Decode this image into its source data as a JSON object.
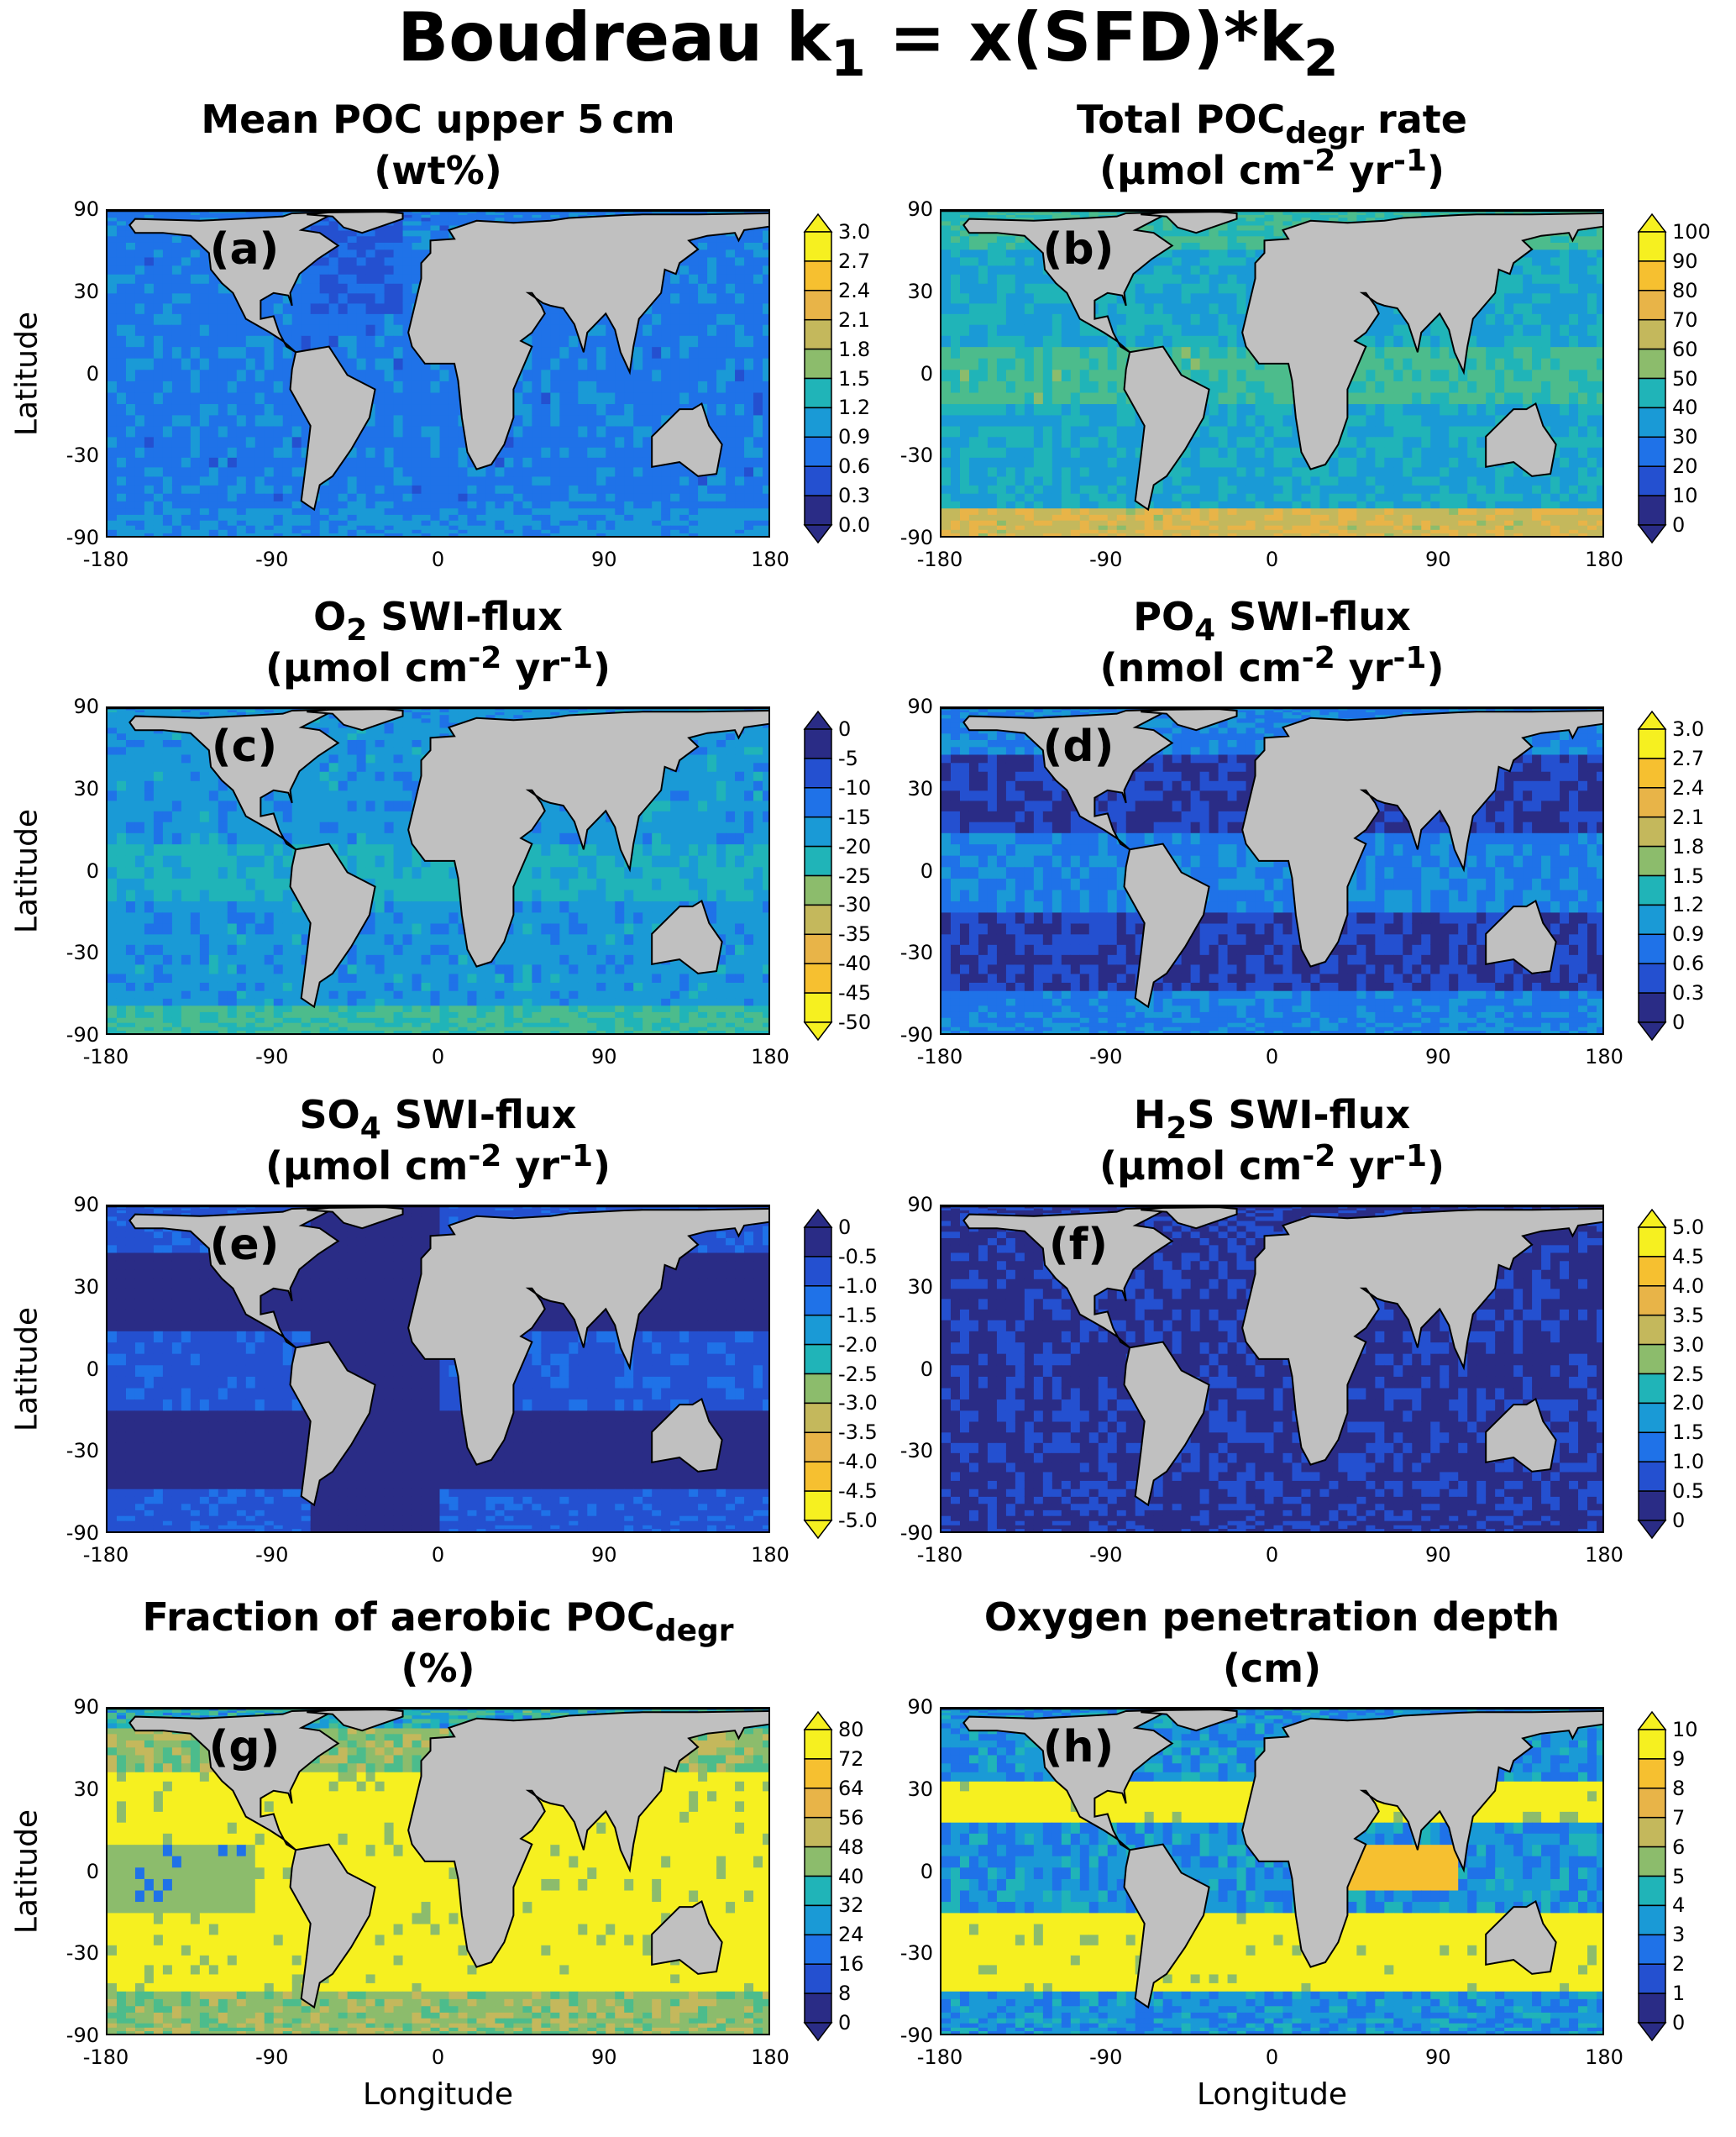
{
  "figure_title": {
    "pre": "Boudreau k",
    "sub1": "1",
    "mid": " = x(SFD)*k",
    "sub2": "2"
  },
  "axes": {
    "ylabel": "Latitude",
    "xlabel": "Longitude",
    "xticks": [
      "-180",
      "-90",
      "0",
      "90",
      "180"
    ],
    "yticks": [
      "90",
      "30",
      "0",
      "-30",
      "-90"
    ]
  },
  "colormap": [
    "#2a2c86",
    "#2450d0",
    "#1f72e8",
    "#1a9ad6",
    "#20b4b8",
    "#4cbc8c",
    "#8cbc6c",
    "#c4b85c",
    "#e8b448",
    "#f6c030",
    "#f6f020"
  ],
  "land_color": "#c0c0c0",
  "chart_data": [
    {
      "type": "heatmap",
      "letter": "(a)",
      "title": [
        [
          {
            "t": "Mean POC upper 5 cm"
          }
        ],
        [
          {
            "t": "(wt%)"
          }
        ]
      ],
      "colorbar": [
        "3.0",
        "2.7",
        "2.4",
        "2.1",
        "1.8",
        "1.5",
        "1.2",
        "0.9",
        "0.6",
        "0.3",
        "0.0"
      ],
      "range": [
        0,
        3.0
      ],
      "reversed": false
    },
    {
      "type": "heatmap",
      "letter": "(b)",
      "title": [
        [
          {
            "t": "Total POC"
          },
          {
            "t": "degr",
            "s": "sub"
          },
          {
            "t": " rate"
          }
        ],
        [
          {
            "t": "(µmol cm"
          },
          {
            "t": "-2",
            "s": "sup"
          },
          {
            "t": " yr"
          },
          {
            "t": "-1",
            "s": "sup"
          },
          {
            "t": ")"
          }
        ]
      ],
      "colorbar": [
        "100",
        "90",
        "80",
        "70",
        "60",
        "50",
        "40",
        "30",
        "20",
        "10",
        "0"
      ],
      "range": [
        0,
        100
      ],
      "reversed": false
    },
    {
      "type": "heatmap",
      "letter": "(c)",
      "title": [
        [
          {
            "t": "O"
          },
          {
            "t": "2",
            "s": "sub"
          },
          {
            "t": " SWI-flux"
          }
        ],
        [
          {
            "t": "(µmol cm"
          },
          {
            "t": "-2",
            "s": "sup"
          },
          {
            "t": " yr"
          },
          {
            "t": "-1",
            "s": "sup"
          },
          {
            "t": ")"
          }
        ]
      ],
      "colorbar": [
        "0",
        "-5",
        "-10",
        "-15",
        "-20",
        "-25",
        "-30",
        "-35",
        "-40",
        "-45",
        "-50"
      ],
      "range": [
        -50,
        0
      ],
      "reversed": true
    },
    {
      "type": "heatmap",
      "letter": "(d)",
      "title": [
        [
          {
            "t": "PO"
          },
          {
            "t": "4",
            "s": "sub"
          },
          {
            "t": " SWI-flux"
          }
        ],
        [
          {
            "t": "(nmol cm"
          },
          {
            "t": "-2",
            "s": "sup"
          },
          {
            "t": " yr"
          },
          {
            "t": "-1",
            "s": "sup"
          },
          {
            "t": ")"
          }
        ]
      ],
      "colorbar": [
        "3.0",
        "2.7",
        "2.4",
        "2.1",
        "1.8",
        "1.5",
        "1.2",
        "0.9",
        "0.6",
        "0.3",
        "0"
      ],
      "range": [
        0,
        3.0
      ],
      "reversed": false
    },
    {
      "type": "heatmap",
      "letter": "(e)",
      "title": [
        [
          {
            "t": "SO"
          },
          {
            "t": "4",
            "s": "sub"
          },
          {
            "t": " SWI-flux"
          }
        ],
        [
          {
            "t": "(µmol cm"
          },
          {
            "t": "-2",
            "s": "sup"
          },
          {
            "t": " yr"
          },
          {
            "t": "-1",
            "s": "sup"
          },
          {
            "t": ")"
          }
        ]
      ],
      "colorbar": [
        "0",
        "-0.5",
        "-1.0",
        "-1.5",
        "-2.0",
        "-2.5",
        "-3.0",
        "-3.5",
        "-4.0",
        "-4.5",
        "-5.0"
      ],
      "range": [
        -5.0,
        0
      ],
      "reversed": true
    },
    {
      "type": "heatmap",
      "letter": "(f)",
      "title": [
        [
          {
            "t": "H"
          },
          {
            "t": "2",
            "s": "sub"
          },
          {
            "t": "S SWI-flux"
          }
        ],
        [
          {
            "t": "(µmol cm"
          },
          {
            "t": "-2",
            "s": "sup"
          },
          {
            "t": " yr"
          },
          {
            "t": "-1",
            "s": "sup"
          },
          {
            "t": ")"
          }
        ]
      ],
      "colorbar": [
        "5.0",
        "4.5",
        "4.0",
        "3.5",
        "3.0",
        "2.5",
        "2.0",
        "1.5",
        "1.0",
        "0.5",
        "0"
      ],
      "range": [
        0,
        5.0
      ],
      "reversed": false
    },
    {
      "type": "heatmap",
      "letter": "(g)",
      "title": [
        [
          {
            "t": "Fraction of aerobic POC"
          },
          {
            "t": "degr",
            "s": "sub"
          }
        ],
        [
          {
            "t": "(%)"
          }
        ]
      ],
      "colorbar": [
        "80",
        "72",
        "64",
        "56",
        "48",
        "40",
        "32",
        "24",
        "16",
        "8",
        "0"
      ],
      "range": [
        0,
        80
      ],
      "reversed": false
    },
    {
      "type": "heatmap",
      "letter": "(h)",
      "title": [
        [
          {
            "t": "Oxygen penetration depth"
          }
        ],
        [
          {
            "t": "(cm)"
          }
        ]
      ],
      "colorbar": [
        "10",
        "9",
        "8",
        "7",
        "6",
        "5",
        "4",
        "3",
        "2",
        "1",
        "0"
      ],
      "range": [
        0,
        10
      ],
      "reversed": false
    }
  ]
}
